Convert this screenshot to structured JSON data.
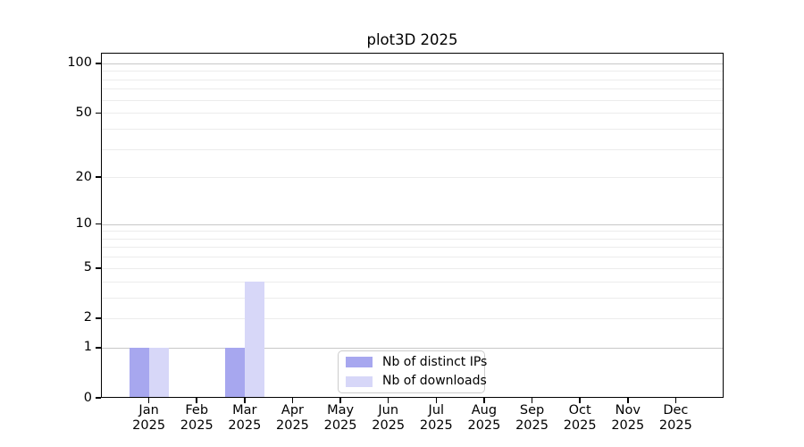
{
  "chart_data": {
    "type": "bar",
    "title": "plot3D 2025",
    "categories": [
      "Jan",
      "Feb",
      "Mar",
      "Apr",
      "May",
      "Jun",
      "Jul",
      "Aug",
      "Sep",
      "Oct",
      "Nov",
      "Dec"
    ],
    "category_year": "2025",
    "series": [
      {
        "name": "Nb of distinct IPs",
        "color": "#a7a7ef",
        "values": [
          1,
          0,
          1,
          0,
          0,
          0,
          0,
          0,
          0,
          0,
          0,
          0
        ]
      },
      {
        "name": "Nb of downloads",
        "color": "#d7d7f8",
        "values": [
          1,
          0,
          4,
          0,
          0,
          0,
          0,
          0,
          0,
          0,
          0,
          0
        ]
      }
    ],
    "y_axis": {
      "scale": "log1p",
      "range": [
        0,
        116
      ],
      "ticks": [
        0,
        1,
        2,
        5,
        10,
        20,
        50,
        100
      ],
      "minor_gridlines": [
        3,
        4,
        6,
        7,
        8,
        9,
        30,
        40,
        60,
        70,
        80,
        90
      ],
      "decade_gridlines": [
        1,
        10,
        100
      ]
    },
    "legend": {
      "position": "lower center"
    },
    "grid": true,
    "colors": {
      "axis": "#000000",
      "gridline_decade": "#c8c8c8",
      "gridline_minor": "#ececec",
      "legend_border": "#cccccc",
      "background": "#ffffff"
    }
  }
}
